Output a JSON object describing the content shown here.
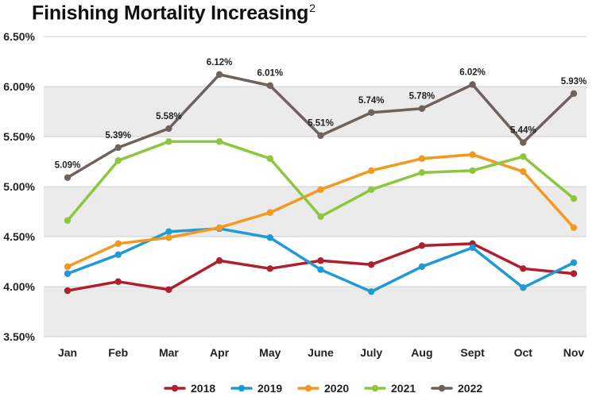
{
  "chart_data": {
    "type": "line",
    "title": "Finishing Mortality Increasing",
    "title_superscript": "2",
    "xlabel": "",
    "ylabel": "",
    "categories": [
      "Jan",
      "Feb",
      "Mar",
      "Apr",
      "May",
      "June",
      "July",
      "Aug",
      "Sept",
      "Oct",
      "Nov"
    ],
    "ylim": [
      3.5,
      6.5
    ],
    "yticks": [
      "3.50%",
      "4.00%",
      "4.50%",
      "5.00%",
      "5.50%",
      "6.00%",
      "6.50%"
    ],
    "grid": true,
    "legend_position": "bottom",
    "series": [
      {
        "name": "2018",
        "color": "#b01f2e",
        "values": [
          3.96,
          4.05,
          3.97,
          4.26,
          4.18,
          4.26,
          4.22,
          4.41,
          4.43,
          4.18,
          4.13
        ]
      },
      {
        "name": "2019",
        "color": "#1f9ad6",
        "values": [
          4.13,
          4.32,
          4.55,
          4.58,
          4.49,
          4.17,
          3.95,
          4.2,
          4.39,
          3.99,
          4.24
        ]
      },
      {
        "name": "2020",
        "color": "#f5981f",
        "values": [
          4.2,
          4.43,
          4.49,
          4.59,
          4.74,
          4.97,
          5.16,
          5.28,
          5.32,
          5.15,
          4.59
        ]
      },
      {
        "name": "2021",
        "color": "#8dc63f",
        "values": [
          4.66,
          5.26,
          5.45,
          5.45,
          5.28,
          4.7,
          4.97,
          5.14,
          5.16,
          5.3,
          4.88
        ]
      },
      {
        "name": "2022",
        "color": "#6e625c",
        "values": [
          5.09,
          5.39,
          5.58,
          6.12,
          6.01,
          5.51,
          5.74,
          5.78,
          6.02,
          5.44,
          5.93
        ],
        "labels": [
          "5.09%",
          "5.39%",
          "5.58%",
          "6.12%",
          "6.01%",
          "5.51%",
          "5.74%",
          "5.78%",
          "6.02%",
          "5.44%",
          "5.93%"
        ]
      }
    ]
  }
}
